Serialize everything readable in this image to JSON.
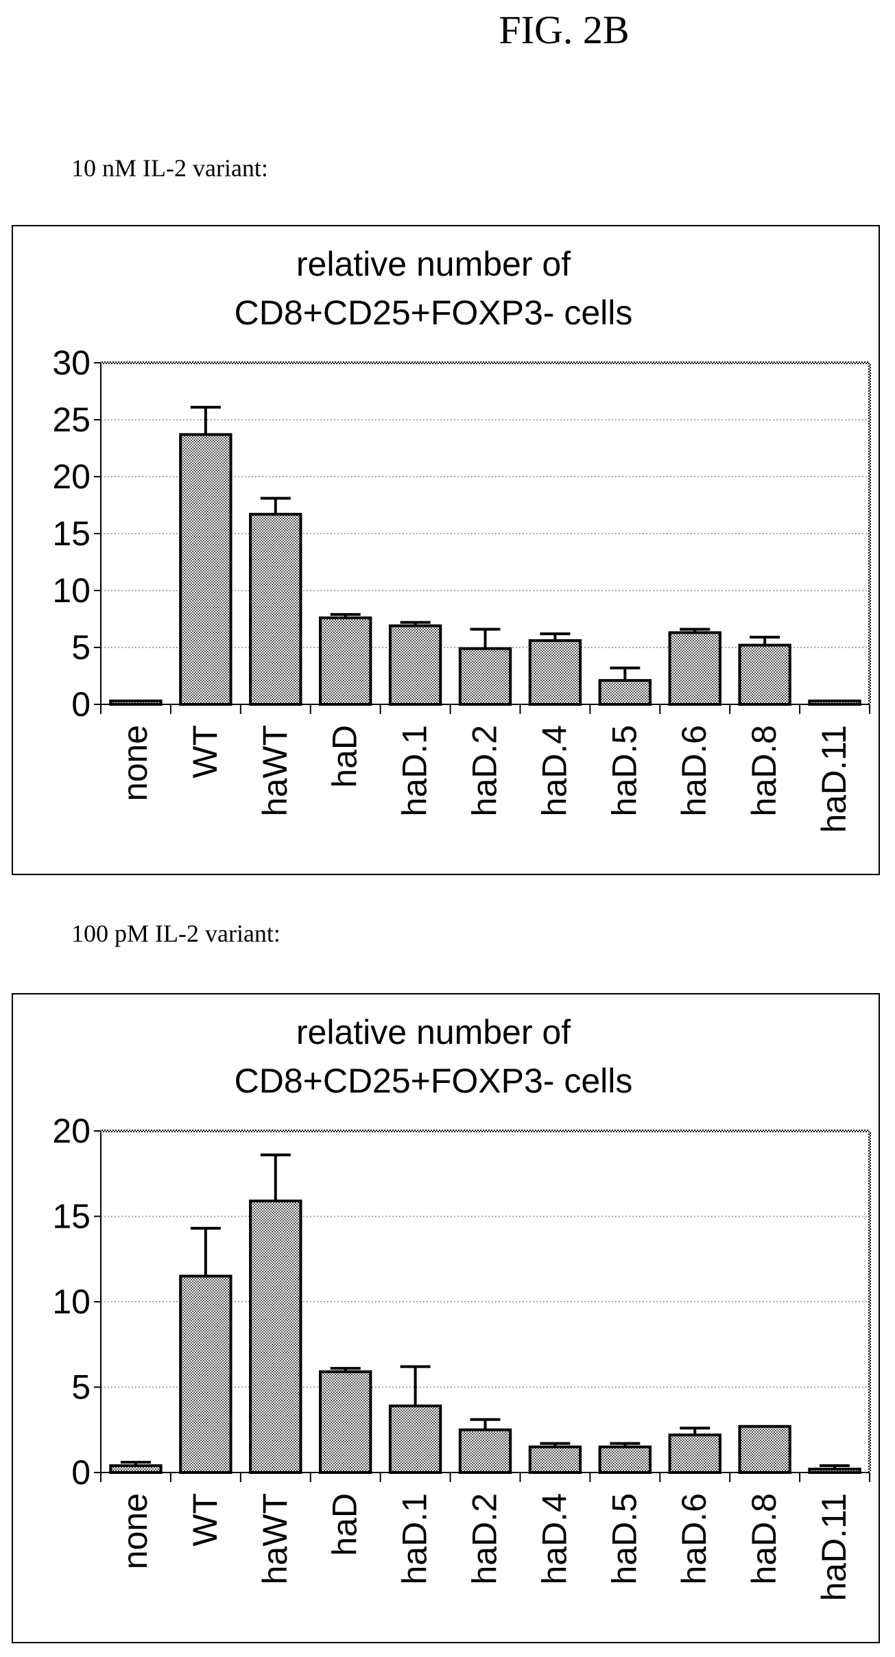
{
  "figure_label": "FIG. 2B",
  "chart_data": [
    {
      "type": "bar",
      "caption": "10 nM IL-2 variant:",
      "title_line1": "relative number of",
      "title_line2": "CD8+CD25+FOXP3- cells",
      "categories": [
        "none",
        "WT",
        "haWT",
        "haD",
        "haD.1",
        "haD.2",
        "haD.4",
        "haD.5",
        "haD.6",
        "haD.8",
        "haD.11"
      ],
      "values": [
        0.3,
        23.7,
        16.7,
        7.6,
        6.9,
        4.9,
        5.6,
        2.1,
        6.3,
        5.2,
        0.3
      ],
      "errors": [
        0,
        2.4,
        1.4,
        0.3,
        0.3,
        1.7,
        0.6,
        1.1,
        0.3,
        0.7,
        0
      ],
      "ylim": [
        0,
        30
      ],
      "yticks": [
        0,
        5,
        10,
        15,
        20,
        25,
        30
      ],
      "grid": true,
      "bar_color": "#bdbdbd"
    },
    {
      "type": "bar",
      "caption": "100 pM IL-2 variant:",
      "title_line1": "relative number of",
      "title_line2": "CD8+CD25+FOXP3- cells",
      "categories": [
        "none",
        "WT",
        "haWT",
        "haD",
        "haD.1",
        "haD.2",
        "haD.4",
        "haD.5",
        "haD.6",
        "haD.8",
        "haD.11"
      ],
      "values": [
        0.4,
        11.5,
        15.9,
        5.9,
        3.9,
        2.5,
        1.5,
        1.5,
        2.2,
        2.7,
        0.2
      ],
      "errors": [
        0.2,
        2.8,
        2.7,
        0.2,
        2.3,
        0.6,
        0.2,
        0.2,
        0.4,
        0,
        0.2
      ],
      "ylim": [
        0,
        20
      ],
      "yticks": [
        0,
        5,
        10,
        15,
        20
      ],
      "grid": true,
      "bar_color": "#bdbdbd"
    }
  ]
}
